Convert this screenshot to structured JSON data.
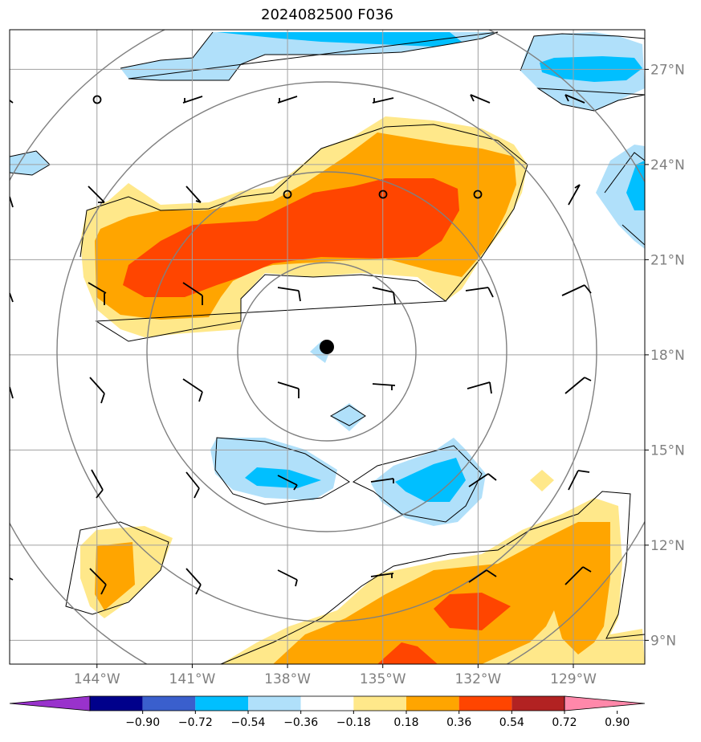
{
  "title": "2024082500 F036",
  "chart_data": {
    "type": "map",
    "x_ticks": [
      "144°W",
      "141°W",
      "138°W",
      "135°W",
      "132°W",
      "129°W"
    ],
    "y_ticks": [
      "27°N",
      "24°N",
      "21°N",
      "18°N",
      "15°N",
      "12°N",
      "9°N"
    ],
    "lon_values": [
      -144,
      -141,
      -138,
      -135,
      -132,
      -129
    ],
    "lat_values": [
      27,
      24,
      21,
      18,
      15,
      12,
      9
    ],
    "xlim": [
      -146.75,
      -126.75
    ],
    "ylim": [
      8.25,
      28.25
    ],
    "grid": true,
    "center": {
      "lon": -136.3,
      "lat": 18.2
    },
    "colorbar": {
      "levels": [
        "−0.90",
        "−0.72",
        "−0.54",
        "−0.36",
        "−0.18",
        "0.18",
        "0.36",
        "0.54",
        "0.72",
        "0.90"
      ],
      "colors": [
        "#9932cc",
        "#00008b",
        "#3a5fcd",
        "#00bfff",
        "#b0e0fa",
        "#ffffff",
        "#ffe88a",
        "#ffa500",
        "#ff4500",
        "#b22222",
        "#ff88aa"
      ],
      "extend": "both"
    }
  }
}
